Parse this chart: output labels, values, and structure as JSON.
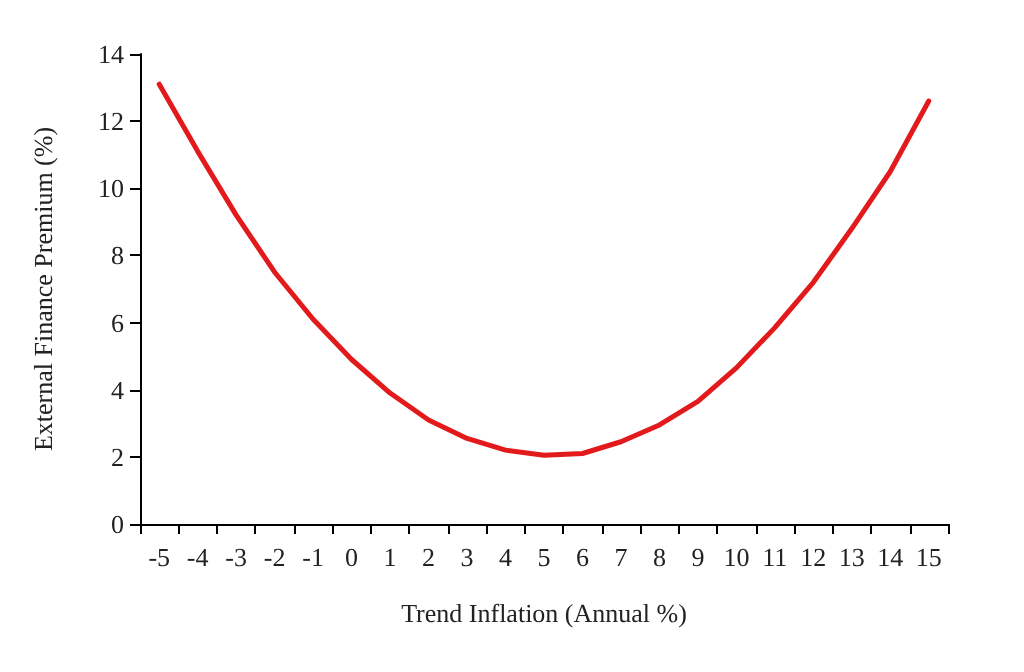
{
  "chart_data": {
    "type": "line",
    "xlabel": "Trend Inflation (Annual %)",
    "ylabel": "External Finance Premium (%)",
    "categories": [
      "-5",
      "-4",
      "-3",
      "-2",
      "-1",
      "0",
      "1",
      "2",
      "3",
      "4",
      "5",
      "6",
      "7",
      "8",
      "9",
      "10",
      "11",
      "12",
      "13",
      "14",
      "15"
    ],
    "series": [
      {
        "color": "#e31a1c",
        "values": [
          13.1,
          11.1,
          9.2,
          7.5,
          6.1,
          4.9,
          3.9,
          3.1,
          2.55,
          2.2,
          2.05,
          2.1,
          2.45,
          2.95,
          3.65,
          4.65,
          5.85,
          7.2,
          8.8,
          10.5,
          12.6
        ]
      }
    ],
    "ylim": [
      0,
      14
    ],
    "yticks": [
      0,
      2,
      4,
      6,
      8,
      10,
      12,
      14
    ],
    "marker": "none",
    "line_style": "solid"
  }
}
